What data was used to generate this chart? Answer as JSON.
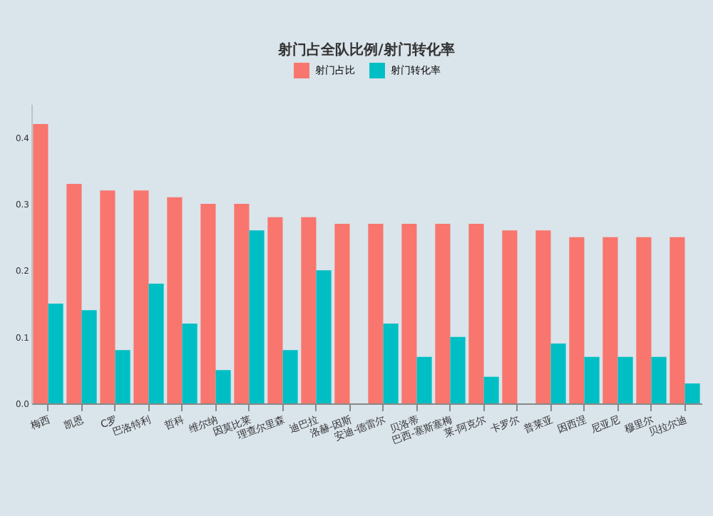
{
  "chart_data": {
    "type": "bar",
    "title": "射门占全队比例/射门转化率",
    "categories": [
      "梅西",
      "凯恩",
      "C罗",
      "巴洛特利",
      "哲科",
      "维尔纳",
      "因莫比莱",
      "理查尔里森",
      "迪巴拉",
      "洛赫-因斯",
      "安迪-德雷尔",
      "贝洛蒂",
      "巴西-塞斯塞梅",
      "莱-阿克尔",
      "卡罗尔",
      "普莱亚",
      "因西涅",
      "尼亚尼",
      "穆里尔",
      "贝拉尔迪"
    ],
    "series": [
      {
        "name": "射门占比",
        "color": "#f8766d",
        "values": [
          0.42,
          0.33,
          0.32,
          0.32,
          0.31,
          0.3,
          0.3,
          0.28,
          0.28,
          0.27,
          0.27,
          0.27,
          0.27,
          0.27,
          0.26,
          0.26,
          0.25,
          0.25,
          0.25,
          0.25
        ]
      },
      {
        "name": "射门转化率",
        "color": "#00bfc4",
        "values": [
          0.15,
          0.14,
          0.08,
          0.18,
          0.12,
          0.05,
          0.26,
          0.08,
          0.2,
          null,
          0.12,
          0.07,
          0.1,
          0.04,
          null,
          0.09,
          0.07,
          0.07,
          0.07,
          0.03
        ]
      }
    ],
    "ylim": [
      0,
      0.45
    ],
    "yticks": [
      {
        "value": 0,
        "label": "0.0"
      },
      {
        "value": 0.1,
        "label": "0.1"
      },
      {
        "value": 0.2,
        "label": "0.2"
      },
      {
        "value": 0.3,
        "label": "0.3"
      },
      {
        "value": 0.4,
        "label": "0.4"
      }
    ],
    "legend": "top"
  }
}
